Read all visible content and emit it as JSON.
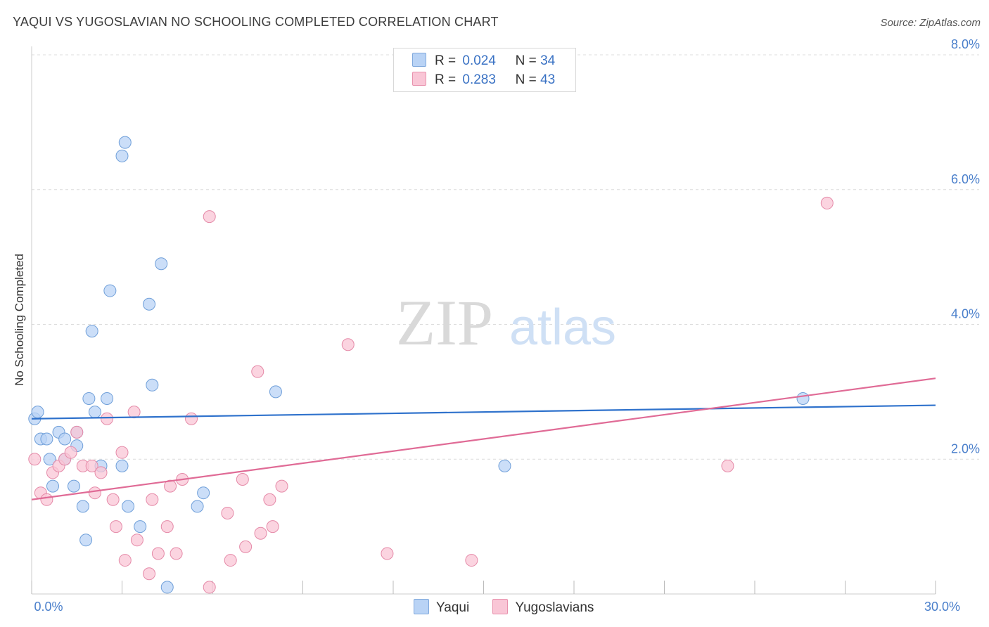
{
  "title": "YAQUI VS YUGOSLAVIAN NO SCHOOLING COMPLETED CORRELATION CHART",
  "source": "Source: ZipAtlas.com",
  "watermark": {
    "zip": "ZIP",
    "atlas": "atlas"
  },
  "legend": {
    "r_label": "R =",
    "n_label": "N =",
    "entries": [
      {
        "name": "Yaqui",
        "r": "0.024",
        "n": "34",
        "fill": "#b9d3f5",
        "stroke": "#7fa8dc"
      },
      {
        "name": "Yugoslavians",
        "r": "0.283",
        "n": "43",
        "fill": "#f9c6d6",
        "stroke": "#e891ad"
      }
    ]
  },
  "colors": {
    "yaqui_fill": "#b9d3f5",
    "yaqui_stroke": "#6f9fd9",
    "yaqui_line": "#2f72cc",
    "yugo_fill": "#f9c6d6",
    "yugo_stroke": "#e58aa8",
    "yugo_line": "#e06b96",
    "tick_text": "#4a7fcb",
    "grid": "#dcdcdc"
  },
  "chart_data": {
    "type": "scatter",
    "title": "YAQUI VS YUGOSLAVIAN NO SCHOOLING COMPLETED CORRELATION CHART",
    "xlabel": "",
    "ylabel": "No Schooling Completed",
    "xlim": [
      0,
      30
    ],
    "ylim": [
      0,
      8.0
    ],
    "x_tick_labels": [
      "0.0%",
      "30.0%"
    ],
    "y_ticks": [
      2,
      4,
      6,
      8
    ],
    "y_tick_labels": [
      "2.0%",
      "4.0%",
      "6.0%",
      "8.0%"
    ],
    "grid": true,
    "series": [
      {
        "name": "Yaqui",
        "points": [
          [
            0.1,
            2.6
          ],
          [
            0.2,
            2.7
          ],
          [
            0.3,
            2.3
          ],
          [
            0.5,
            2.3
          ],
          [
            0.6,
            2.0
          ],
          [
            0.7,
            1.6
          ],
          [
            0.9,
            2.4
          ],
          [
            1.1,
            2.0
          ],
          [
            1.1,
            2.3
          ],
          [
            1.4,
            1.6
          ],
          [
            1.5,
            2.2
          ],
          [
            1.5,
            2.4
          ],
          [
            1.7,
            1.3
          ],
          [
            1.8,
            0.8
          ],
          [
            1.9,
            2.9
          ],
          [
            2.0,
            3.9
          ],
          [
            2.1,
            2.7
          ],
          [
            2.3,
            1.9
          ],
          [
            2.5,
            2.9
          ],
          [
            2.6,
            4.5
          ],
          [
            3.0,
            6.5
          ],
          [
            3.0,
            1.9
          ],
          [
            3.1,
            6.7
          ],
          [
            3.2,
            1.3
          ],
          [
            3.6,
            1.0
          ],
          [
            3.9,
            4.3
          ],
          [
            4.0,
            3.1
          ],
          [
            4.3,
            4.9
          ],
          [
            4.5,
            0.1
          ],
          [
            5.5,
            1.3
          ],
          [
            5.7,
            1.5
          ],
          [
            8.1,
            3.0
          ],
          [
            15.7,
            1.9
          ],
          [
            25.6,
            2.9
          ]
        ],
        "trend": {
          "x": [
            0,
            30
          ],
          "y": [
            2.6,
            2.8
          ]
        }
      },
      {
        "name": "Yugoslavians",
        "points": [
          [
            0.1,
            2.0
          ],
          [
            0.3,
            1.5
          ],
          [
            0.5,
            1.4
          ],
          [
            0.7,
            1.8
          ],
          [
            0.9,
            1.9
          ],
          [
            1.1,
            2.0
          ],
          [
            1.3,
            2.1
          ],
          [
            1.5,
            2.4
          ],
          [
            1.7,
            1.9
          ],
          [
            2.0,
            1.9
          ],
          [
            2.1,
            1.5
          ],
          [
            2.3,
            1.8
          ],
          [
            2.5,
            2.6
          ],
          [
            2.7,
            1.4
          ],
          [
            2.8,
            1.0
          ],
          [
            3.0,
            2.1
          ],
          [
            3.1,
            0.5
          ],
          [
            3.4,
            2.7
          ],
          [
            3.5,
            0.8
          ],
          [
            3.9,
            0.3
          ],
          [
            4.0,
            1.4
          ],
          [
            4.2,
            0.6
          ],
          [
            4.5,
            1.0
          ],
          [
            4.6,
            1.6
          ],
          [
            4.8,
            0.6
          ],
          [
            5.0,
            1.7
          ],
          [
            5.3,
            2.6
          ],
          [
            5.9,
            0.1
          ],
          [
            5.9,
            5.6
          ],
          [
            6.5,
            1.2
          ],
          [
            6.6,
            0.5
          ],
          [
            7.0,
            1.7
          ],
          [
            7.1,
            0.7
          ],
          [
            7.5,
            3.3
          ],
          [
            7.6,
            0.9
          ],
          [
            7.9,
            1.4
          ],
          [
            8.0,
            1.0
          ],
          [
            8.3,
            1.6
          ],
          [
            10.5,
            3.7
          ],
          [
            11.8,
            0.6
          ],
          [
            14.6,
            0.5
          ],
          [
            23.1,
            1.9
          ],
          [
            26.4,
            5.8
          ]
        ],
        "trend": {
          "x": [
            0,
            30
          ],
          "y": [
            1.4,
            3.2
          ]
        }
      }
    ]
  }
}
